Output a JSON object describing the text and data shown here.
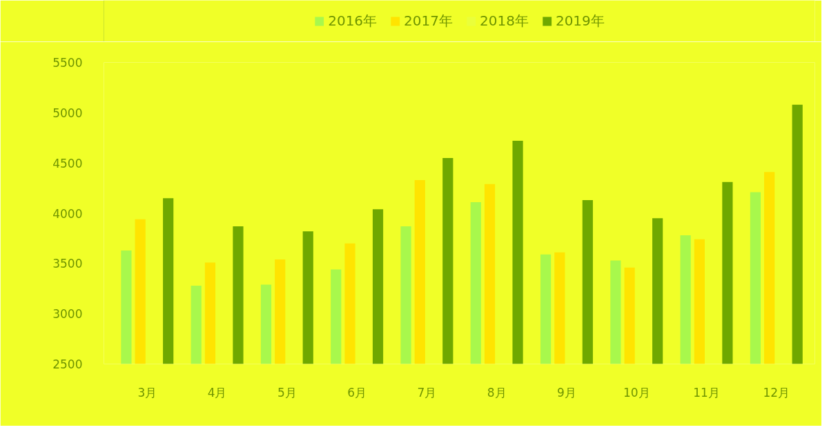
{
  "chart_data": {
    "type": "bar",
    "categories": [
      "3月",
      "4月",
      "5月",
      "6月",
      "7月",
      "8月",
      "9月",
      "10月",
      "11月",
      "12月"
    ],
    "series": [
      {
        "name": "2016年",
        "color": "#a8f84c",
        "values": [
          3630,
          3280,
          3290,
          3440,
          3870,
          4110,
          3590,
          3530,
          3780,
          4210
        ]
      },
      {
        "name": "2017年",
        "color": "#ffe400",
        "values": [
          3940,
          3510,
          3540,
          3700,
          4330,
          4290,
          3610,
          3460,
          3740,
          4410
        ]
      },
      {
        "name": "2018年",
        "color": "#eaff3a",
        "values": [
          null,
          null,
          null,
          null,
          null,
          null,
          null,
          null,
          null,
          null
        ]
      },
      {
        "name": "2019年",
        "color": "#6fa800",
        "values": [
          4150,
          3870,
          3820,
          4040,
          4550,
          4720,
          4130,
          3950,
          4310,
          5080
        ]
      }
    ],
    "ylim": [
      2500,
      5500
    ],
    "yticks": [
      2500,
      3000,
      3500,
      4000,
      4500,
      5000,
      5500
    ],
    "grid": false,
    "legend": "top"
  }
}
